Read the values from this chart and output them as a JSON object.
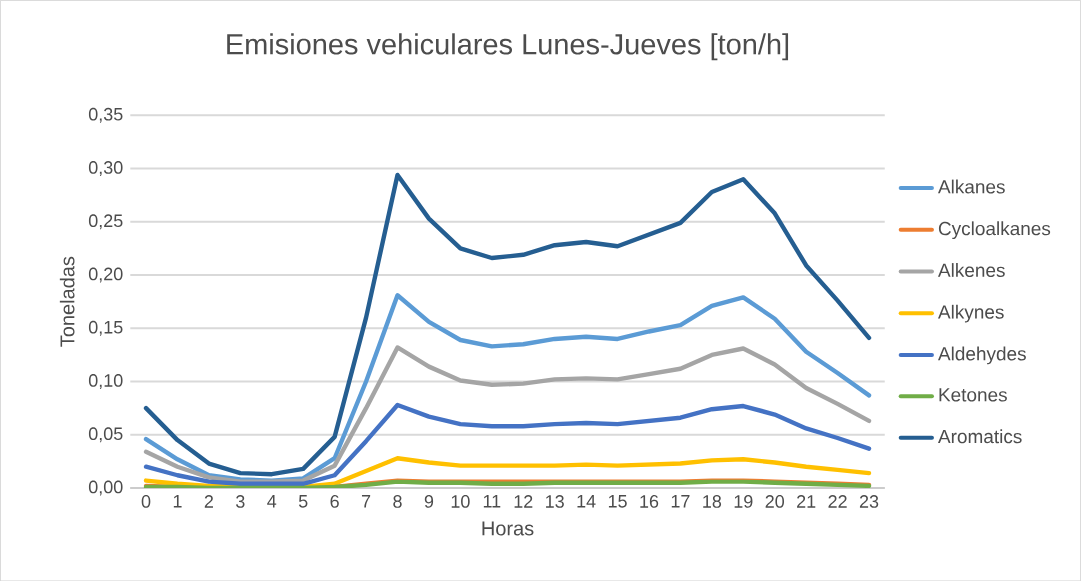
{
  "chart_data": {
    "type": "line",
    "title": "Emisiones vehiculares Lunes-Jueves [ton/h]",
    "xlabel": "Horas",
    "ylabel": "Toneladas",
    "categories": [
      "0",
      "1",
      "2",
      "3",
      "4",
      "5",
      "6",
      "7",
      "8",
      "9",
      "10",
      "11",
      "12",
      "13",
      "14",
      "15",
      "16",
      "17",
      "18",
      "19",
      "20",
      "21",
      "22",
      "23"
    ],
    "series": [
      {
        "name": "Alkanes",
        "color": "#5b9bd5",
        "values": [
          0.046,
          0.027,
          0.012,
          0.008,
          0.007,
          0.009,
          0.028,
          0.1,
          0.181,
          0.156,
          0.139,
          0.133,
          0.135,
          0.14,
          0.142,
          0.14,
          0.147,
          0.153,
          0.171,
          0.179,
          0.159,
          0.128,
          0.108,
          0.087
        ]
      },
      {
        "name": "Cycloalkanes",
        "color": "#ed7d31",
        "values": [
          0.002,
          0.001,
          0.001,
          0,
          0,
          0,
          0.001,
          0.004,
          0.007,
          0.006,
          0.006,
          0.006,
          0.006,
          0.006,
          0.006,
          0.006,
          0.006,
          0.006,
          0.007,
          0.007,
          0.006,
          0.005,
          0.004,
          0.003
        ]
      },
      {
        "name": "Alkenes",
        "color": "#a5a5a5",
        "values": [
          0.034,
          0.02,
          0.01,
          0.006,
          0.006,
          0.007,
          0.021,
          0.075,
          0.132,
          0.114,
          0.101,
          0.097,
          0.098,
          0.102,
          0.103,
          0.102,
          0.107,
          0.112,
          0.125,
          0.131,
          0.116,
          0.094,
          0.079,
          0.063
        ]
      },
      {
        "name": "Alkynes",
        "color": "#ffc000",
        "values": [
          0.007,
          0.004,
          0.002,
          null,
          null,
          0.001,
          0.004,
          0.016,
          0.028,
          0.024,
          0.021,
          0.021,
          0.021,
          0.021,
          0.022,
          0.021,
          0.022,
          0.023,
          0.026,
          0.027,
          0.024,
          0.02,
          0.017,
          0.014
        ]
      },
      {
        "name": "Aldehydes",
        "color": "#4472c4",
        "values": [
          0.02,
          0.012,
          0.006,
          0.004,
          0.004,
          0.004,
          0.012,
          0.044,
          0.078,
          0.067,
          0.06,
          0.058,
          0.058,
          0.06,
          0.061,
          0.06,
          0.063,
          0.066,
          0.074,
          0.077,
          0.069,
          0.056,
          0.047,
          0.037
        ]
      },
      {
        "name": "Ketones",
        "color": "#70ad47",
        "values": [
          0.001,
          0.001,
          0,
          0,
          0,
          0,
          0.001,
          0.003,
          0.006,
          0.005,
          0.005,
          0.004,
          0.004,
          0.005,
          0.005,
          0.005,
          0.005,
          0.005,
          0.006,
          0.006,
          0.005,
          0.004,
          0.003,
          0.002
        ]
      },
      {
        "name": "Aromatics",
        "color": "#255e91",
        "values": [
          0.075,
          0.045,
          0.023,
          0.014,
          0.013,
          0.018,
          0.048,
          0.16,
          0.294,
          0.253,
          0.225,
          0.216,
          0.219,
          0.228,
          0.231,
          0.227,
          0.238,
          0.249,
          0.278,
          0.29,
          0.258,
          0.209,
          0.176,
          0.141
        ]
      }
    ],
    "ylim": [
      0,
      0.35
    ],
    "yticks": [
      {
        "value": 0,
        "label": "0,00"
      },
      {
        "value": 0.05,
        "label": "0,05"
      },
      {
        "value": 0.1,
        "label": "0,10"
      },
      {
        "value": 0.15,
        "label": "0,15"
      },
      {
        "value": 0.2,
        "label": "0,20"
      },
      {
        "value": 0.25,
        "label": "0,25"
      },
      {
        "value": 0.3,
        "label": "0,30"
      },
      {
        "value": 0.35,
        "label": "0,35"
      }
    ],
    "grid": "y",
    "legend": "right"
  }
}
